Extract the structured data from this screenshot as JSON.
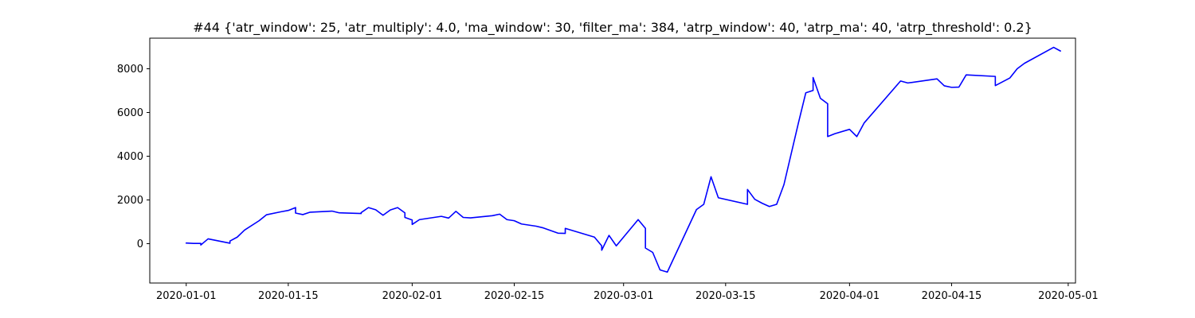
{
  "chart_data": {
    "type": "line",
    "title": "#44 {'atr_window': 25, 'atr_multiply': 4.0, 'ma_window': 30, 'filter_ma': 384, 'atrp_window': 40, 'atrp_ma': 40, 'atrp_threshold': 0.2}",
    "xlabel": "",
    "ylabel": "",
    "xlim": [
      "2019-12-27",
      "2020-05-02"
    ],
    "ylim": [
      -1800,
      9400
    ],
    "grid": false,
    "legend": "none",
    "x_ticks": [
      "2020-01-01",
      "2020-01-15",
      "2020-02-01",
      "2020-02-15",
      "2020-03-01",
      "2020-03-15",
      "2020-04-01",
      "2020-04-15",
      "2020-05-01"
    ],
    "y_ticks": [
      0,
      2000,
      4000,
      6000,
      8000
    ],
    "line_color": "#0000ff",
    "series": [
      {
        "values": [
          [
            "2020-01-01",
            0
          ],
          [
            "2020-01-01",
            30
          ],
          [
            "2020-01-02",
            10
          ],
          [
            "2020-01-03",
            10
          ],
          [
            "2020-01-03",
            -60
          ],
          [
            "2020-01-04",
            220
          ],
          [
            "2020-01-07",
            20
          ],
          [
            "2020-01-07",
            120
          ],
          [
            "2020-01-08",
            300
          ],
          [
            "2020-01-09",
            620
          ],
          [
            "2020-01-11",
            1050
          ],
          [
            "2020-01-12",
            1320
          ],
          [
            "2020-01-14",
            1460
          ],
          [
            "2020-01-15",
            1520
          ],
          [
            "2020-01-16",
            1650
          ],
          [
            "2020-01-16",
            1400
          ],
          [
            "2020-01-17",
            1330
          ],
          [
            "2020-01-18",
            1440
          ],
          [
            "2020-01-21",
            1490
          ],
          [
            "2020-01-22",
            1410
          ],
          [
            "2020-01-25",
            1380
          ],
          [
            "2020-01-25",
            1420
          ],
          [
            "2020-01-26",
            1650
          ],
          [
            "2020-01-27",
            1550
          ],
          [
            "2020-01-28",
            1300
          ],
          [
            "2020-01-29",
            1540
          ],
          [
            "2020-01-30",
            1650
          ],
          [
            "2020-01-31",
            1410
          ],
          [
            "2020-01-31",
            1200
          ],
          [
            "2020-02-01",
            1080
          ],
          [
            "2020-02-01",
            880
          ],
          [
            "2020-02-02",
            1100
          ],
          [
            "2020-02-04",
            1200
          ],
          [
            "2020-02-05",
            1250
          ],
          [
            "2020-02-06",
            1170
          ],
          [
            "2020-02-07",
            1480
          ],
          [
            "2020-02-08",
            1200
          ],
          [
            "2020-02-09",
            1180
          ],
          [
            "2020-02-12",
            1280
          ],
          [
            "2020-02-13",
            1350
          ],
          [
            "2020-02-14",
            1100
          ],
          [
            "2020-02-15",
            1050
          ],
          [
            "2020-02-16",
            900
          ],
          [
            "2020-02-18",
            800
          ],
          [
            "2020-02-19",
            720
          ],
          [
            "2020-02-20",
            600
          ],
          [
            "2020-02-21",
            480
          ],
          [
            "2020-02-22",
            470
          ],
          [
            "2020-02-22",
            700
          ],
          [
            "2020-02-26",
            300
          ],
          [
            "2020-02-27",
            -100
          ],
          [
            "2020-02-27",
            -300
          ],
          [
            "2020-02-28",
            380
          ],
          [
            "2020-02-29",
            -100
          ],
          [
            "2020-03-03",
            1100
          ],
          [
            "2020-03-04",
            700
          ],
          [
            "2020-03-04",
            -200
          ],
          [
            "2020-03-05",
            -400
          ],
          [
            "2020-03-06",
            -1200
          ],
          [
            "2020-03-07",
            -1300
          ],
          [
            "2020-03-11",
            1560
          ],
          [
            "2020-03-12",
            1800
          ],
          [
            "2020-03-13",
            3060
          ],
          [
            "2020-03-14",
            2100
          ],
          [
            "2020-03-18",
            1800
          ],
          [
            "2020-03-18",
            2480
          ],
          [
            "2020-03-19",
            2030
          ],
          [
            "2020-03-20",
            1850
          ],
          [
            "2020-03-21",
            1700
          ],
          [
            "2020-03-22",
            1800
          ],
          [
            "2020-03-23",
            2700
          ],
          [
            "2020-03-25",
            5540
          ],
          [
            "2020-03-26",
            6900
          ],
          [
            "2020-03-27",
            7010
          ],
          [
            "2020-03-27",
            7600
          ],
          [
            "2020-03-28",
            6650
          ],
          [
            "2020-03-29",
            6400
          ],
          [
            "2020-03-29",
            4900
          ],
          [
            "2020-03-30",
            5030
          ],
          [
            "2020-04-01",
            5230
          ],
          [
            "2020-04-02",
            4900
          ],
          [
            "2020-04-03",
            5520
          ],
          [
            "2020-04-08",
            7440
          ],
          [
            "2020-04-09",
            7350
          ],
          [
            "2020-04-13",
            7540
          ],
          [
            "2020-04-14",
            7220
          ],
          [
            "2020-04-15",
            7150
          ],
          [
            "2020-04-16",
            7160
          ],
          [
            "2020-04-17",
            7720
          ],
          [
            "2020-04-21",
            7650
          ],
          [
            "2020-04-21",
            7230
          ],
          [
            "2020-04-23",
            7580
          ],
          [
            "2020-04-24",
            8000
          ],
          [
            "2020-04-25",
            8250
          ],
          [
            "2020-04-29",
            8980
          ],
          [
            "2020-04-30",
            8800
          ]
        ]
      }
    ]
  }
}
